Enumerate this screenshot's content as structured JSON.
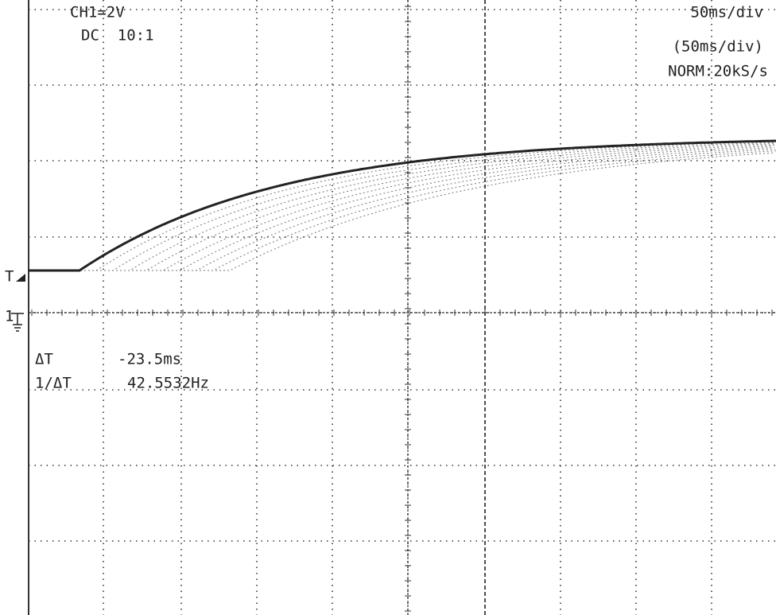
{
  "header": {
    "channel": "CH1=2V",
    "coupling": "DC  10:1",
    "timebase": "50ms/div",
    "timebase_zoom": "(50ms/div)",
    "acquisition": "NORM:20kS/s"
  },
  "markers": {
    "trigger": "T",
    "ground": "1"
  },
  "cursor": {
    "delta_label": "ΔT",
    "delta_value": "-23.5ms",
    "inverse_label": "1/ΔT",
    "inverse_value": "42.5532Hz"
  }
}
